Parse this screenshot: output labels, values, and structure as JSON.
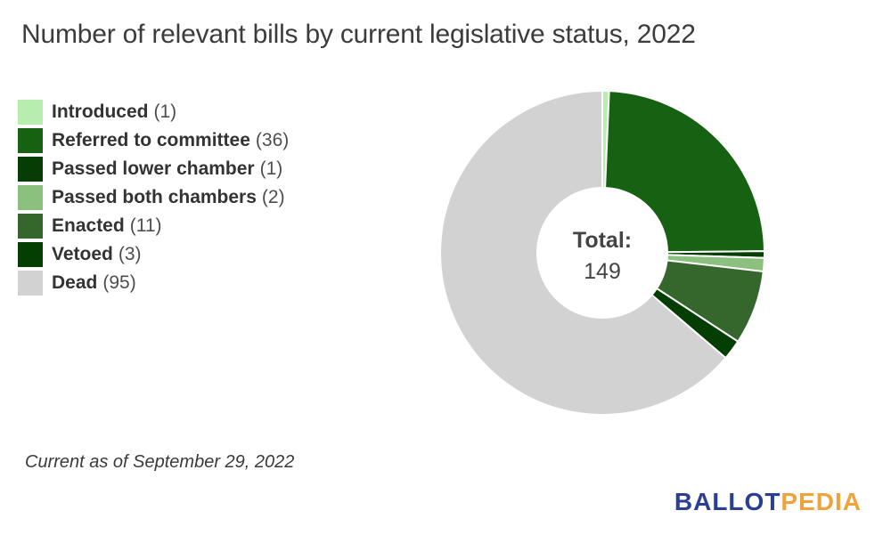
{
  "title": "Number of relevant bills by current legislative status, 2022",
  "chart_data": {
    "type": "pie",
    "subtype": "donut",
    "title": "Number of relevant bills by current legislative status, 2022",
    "categories": [
      "Introduced",
      "Referred to committee",
      "Passed lower chamber",
      "Passed both chambers",
      "Enacted",
      "Vetoed",
      "Dead"
    ],
    "values": [
      1,
      36,
      1,
      2,
      11,
      3,
      95
    ],
    "colors": [
      "#b7eeae",
      "#176112",
      "#063d04",
      "#8bc07e",
      "#35672c",
      "#053e02",
      "#d2d2d2"
    ],
    "total": 149,
    "center_label": "Total:",
    "center_value": "149",
    "start_angle_deg": 0,
    "direction": "clockwise",
    "inner_radius_ratio": 0.4,
    "slice_border_color": "#ffffff",
    "legend_position": "left"
  },
  "footer": {
    "note": "Current as of September 29, 2022"
  },
  "logo": {
    "text_primary": "BALLOT",
    "text_secondary": "PEDIA",
    "color_primary": "#2b3e95",
    "color_secondary": "#f0a33c"
  }
}
